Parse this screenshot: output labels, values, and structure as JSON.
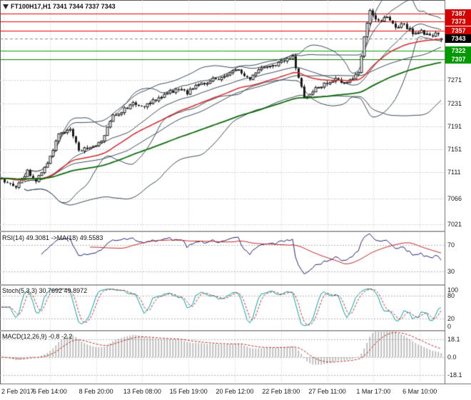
{
  "window": {
    "symbol_line": "FT100H17,H1 7341 7344 7337 7343"
  },
  "colors": {
    "background": "#ffffff",
    "grid": "#cccccc",
    "axis_text": "#1a1a1a",
    "candle_up_fill": "#ffffff",
    "candle_down_fill": "#1a1a1a",
    "candle_border": "#1a1a1a",
    "bollinger": "#3c4c5a",
    "ma_fast": "#d42a2a",
    "ma_slow": "#0b6b0b",
    "rsi_line": "#242478",
    "rsi_signal": "#c82828",
    "stoch_k": "#00a2a2",
    "stoch_d": "#c82828",
    "macd_hist": "#b2b2b2",
    "macd_signal": "#c82828",
    "separator": "#aaaaaa"
  },
  "chart_data": {
    "type": "candlestick",
    "symbol": "FT100H17",
    "timeframe": "H1",
    "quote": {
      "open": 7341,
      "high": 7344,
      "low": 7337,
      "close": 7343
    },
    "y_range": [
      7010,
      7410
    ],
    "price_axis": [
      7271,
      7231,
      7191,
      7151,
      7111,
      7066,
      7021
    ],
    "levels": [
      {
        "price": 7387,
        "line": "#e60000",
        "badge_bg": "#d40000"
      },
      {
        "price": 7373,
        "line": "#e60000",
        "badge_bg": "#d40000"
      },
      {
        "price": 7357,
        "line": "#e60000",
        "badge_bg": "#d40000"
      },
      {
        "price": 7343,
        "line": "#888888",
        "badge_bg": "#000000",
        "current": true
      },
      {
        "price": 7322,
        "line": "#00a000",
        "badge_bg": "#009a00"
      },
      {
        "price": 7307,
        "line": "#0e7d0e",
        "badge_bg": "#009a00"
      }
    ],
    "time_axis": [
      "2 Feb 2017",
      "6 Feb 14:00",
      "8 Feb 20:00",
      "13 Feb 08:00",
      "15 Feb 19:00",
      "20 Feb 12:00",
      "22 Feb 18:00",
      "27 Feb 11:00",
      "1 Mar 17:00",
      "6 Mar 10:00"
    ],
    "num_candles": 155,
    "close_path_anchors": [
      [
        0,
        7100
      ],
      [
        5,
        7085
      ],
      [
        9,
        7112
      ],
      [
        12,
        7098
      ],
      [
        16,
        7125
      ],
      [
        20,
        7178
      ],
      [
        24,
        7185
      ],
      [
        27,
        7150
      ],
      [
        31,
        7153
      ],
      [
        35,
        7165
      ],
      [
        39,
        7208
      ],
      [
        42,
        7218
      ],
      [
        46,
        7230
      ],
      [
        50,
        7224
      ],
      [
        54,
        7238
      ],
      [
        57,
        7245
      ],
      [
        61,
        7255
      ],
      [
        65,
        7250
      ],
      [
        68,
        7262
      ],
      [
        72,
        7268
      ],
      [
        76,
        7275
      ],
      [
        80,
        7282
      ],
      [
        83,
        7288
      ],
      [
        87,
        7275
      ],
      [
        91,
        7290
      ],
      [
        95,
        7295
      ],
      [
        98,
        7302
      ],
      [
        102,
        7310
      ],
      [
        106,
        7242
      ],
      [
        109,
        7252
      ],
      [
        113,
        7266
      ],
      [
        117,
        7272
      ],
      [
        120,
        7265
      ],
      [
        122,
        7272
      ],
      [
        125,
        7285
      ],
      [
        127,
        7345
      ],
      [
        129,
        7392
      ],
      [
        132,
        7372
      ],
      [
        135,
        7382
      ],
      [
        138,
        7362
      ],
      [
        141,
        7368
      ],
      [
        144,
        7352
      ],
      [
        147,
        7356
      ],
      [
        150,
        7346
      ],
      [
        152,
        7352
      ],
      [
        154,
        7343
      ]
    ],
    "indicators": {
      "bollinger": {
        "periods": [
          20,
          45
        ],
        "deviation": 2
      },
      "ma_fast": {
        "type": "EMA",
        "period": 34
      },
      "ma_slow": {
        "type": "EMA",
        "period": 90
      },
      "rsi": {
        "label": "RSI(14) 49.3081 ->MA(18) 49.5583",
        "period": 14,
        "ma_period": 18,
        "value": 49.3081,
        "ma_value": 49.5583,
        "levels": [
          70,
          30
        ],
        "range": [
          10,
          90
        ]
      },
      "stoch": {
        "label": "Stoch(5,3,3) 30.7692 49.8972",
        "k_value": 30.7692,
        "d_value": 49.8972,
        "levels": [
          100,
          80,
          20,
          0
        ],
        "grid_levels": [
          80,
          20
        ],
        "range": [
          0,
          100
        ]
      },
      "macd": {
        "label": "MACD(12,26,9) -0.8 -2.2",
        "macd_value": -0.8,
        "signal_value": -2.2,
        "levels": [
          18.1,
          0,
          -18.1
        ],
        "level_labels": [
          "18.1",
          "0.0",
          "-18.1"
        ],
        "range": [
          -26,
          26
        ]
      }
    }
  }
}
